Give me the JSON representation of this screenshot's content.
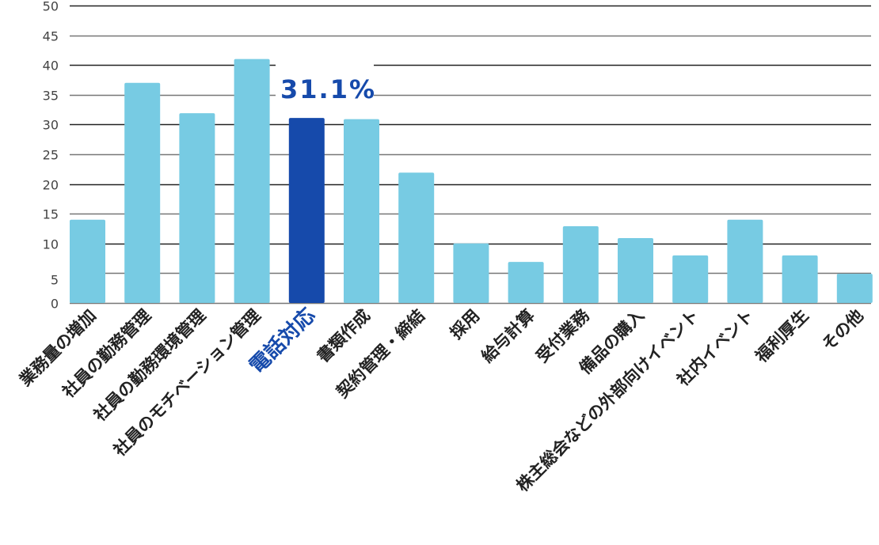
{
  "chart_data": {
    "type": "bar",
    "title": "",
    "xlabel": "",
    "ylabel": "",
    "ylim": [
      0,
      50
    ],
    "yticks": [
      0,
      5,
      10,
      15,
      20,
      25,
      30,
      35,
      40,
      45,
      50
    ],
    "grid": true,
    "categories": [
      "業務量の増加",
      "社員の勤務管理",
      "社員の勤務環境管理",
      "社員のモチベーション管理",
      "電話対応",
      "書類作成",
      "契約管理・締結",
      "採用",
      "給与計算",
      "受付業務",
      "備品の購入",
      "株主総会などの外部向けイベント",
      "社内イベント",
      "福利厚生",
      "その他"
    ],
    "values": [
      14.0,
      37.0,
      31.9,
      41.0,
      31.1,
      30.9,
      21.9,
      10.0,
      6.9,
      12.9,
      10.9,
      8.0,
      14.0,
      8.0,
      4.9
    ],
    "highlight_index": 4,
    "annotation": "31.1%",
    "colors": {
      "bar": "#77cbe3",
      "highlight": "#164aab",
      "grid": "#777777"
    }
  }
}
